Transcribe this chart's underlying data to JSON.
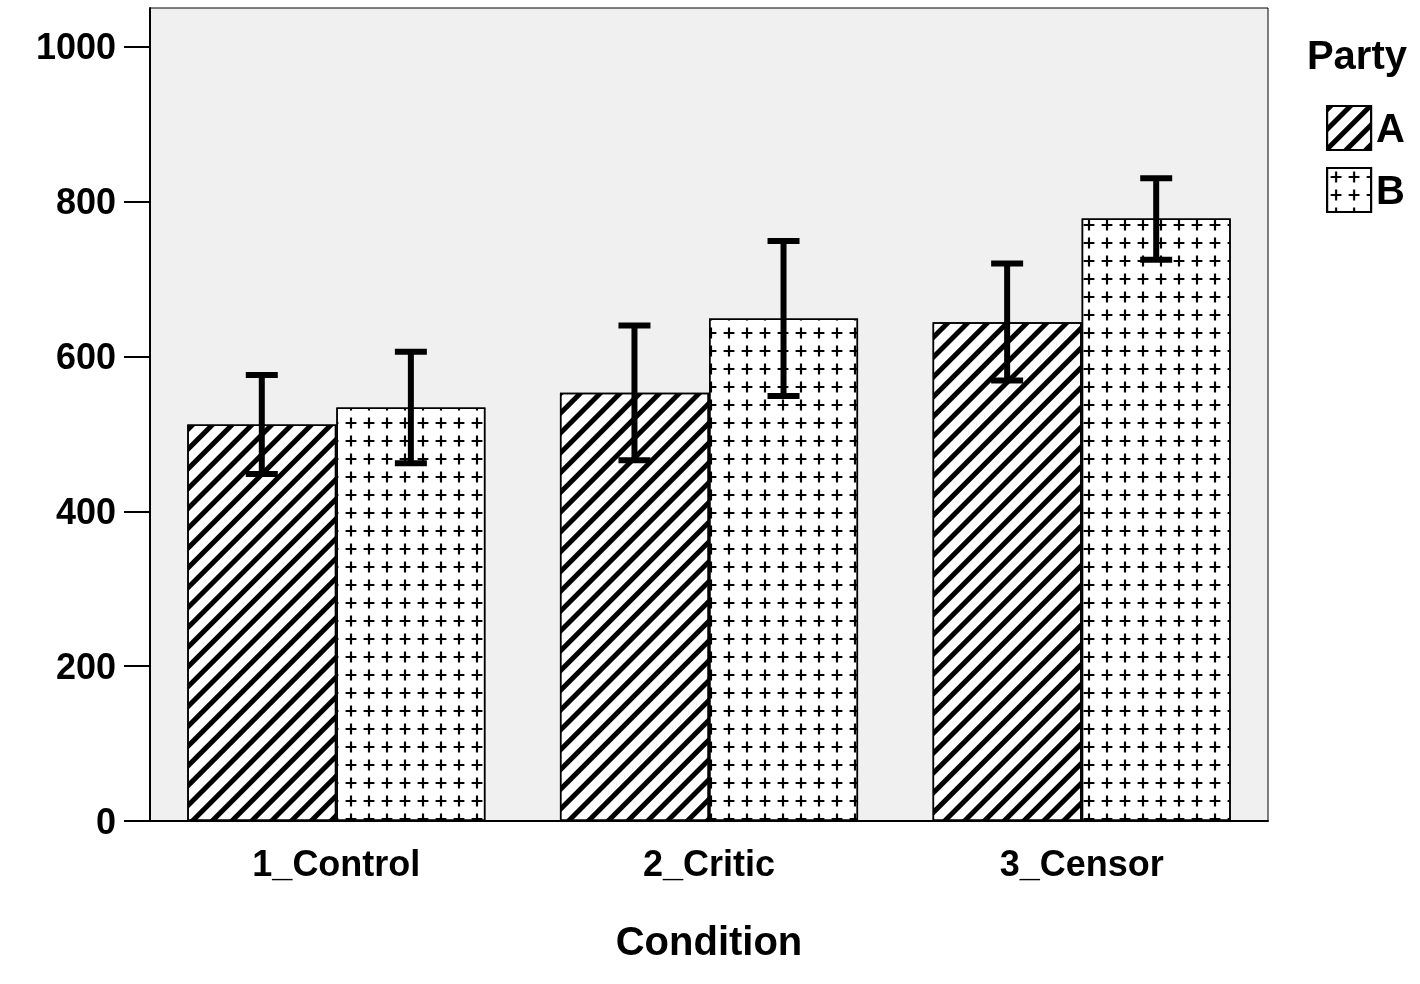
{
  "chart_data": {
    "type": "bar",
    "xlabel": "Condition",
    "legend_title": "Party",
    "categories": [
      "1_Control",
      "2_Critic",
      "3_Censor"
    ],
    "series": [
      {
        "name": "A",
        "color": "#ffffff",
        "values": [
          512,
          553,
          644
        ],
        "errors": [
          [
            448,
            576
          ],
          [
            466,
            640
          ],
          [
            569,
            720
          ]
        ]
      },
      {
        "name": "B",
        "color": "#ffffff",
        "values": [
          534,
          649,
          778
        ],
        "errors": [
          [
            462,
            606
          ],
          [
            549,
            749
          ],
          [
            725,
            830
          ]
        ]
      }
    ],
    "ylim": [
      0,
      1050
    ],
    "yticks": [
      0,
      200,
      400,
      600,
      800,
      1000
    ],
    "grid": false,
    "legend": "right"
  }
}
